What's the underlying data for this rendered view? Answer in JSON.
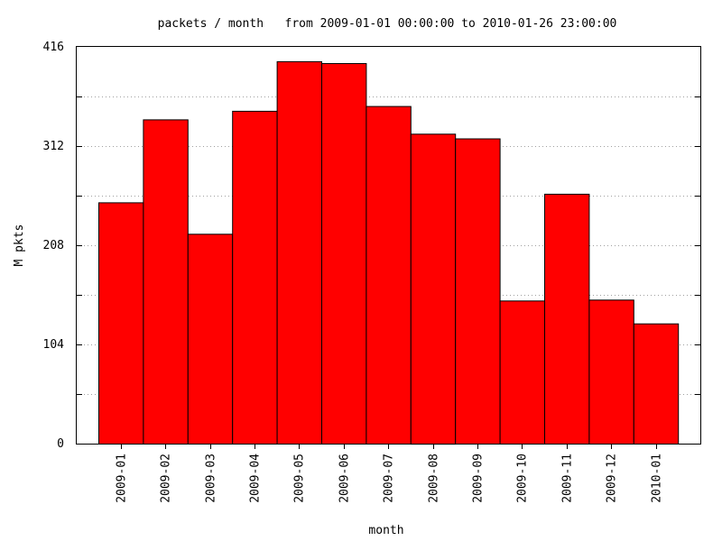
{
  "chart_data": {
    "type": "bar",
    "title": "packets / month   from 2009-01-01 00:00:00 to 2010-01-26 23:00:00",
    "xlabel": "month",
    "ylabel": "M pkts",
    "ylim": [
      0,
      416
    ],
    "yticks": [
      0,
      104,
      208,
      312,
      416
    ],
    "minor_tick_step": 52,
    "grid": true,
    "bar_color": "#ff0000",
    "categories": [
      "2009-01",
      "2009-02",
      "2009-03",
      "2009-04",
      "2009-05",
      "2009-06",
      "2009-07",
      "2009-08",
      "2009-09",
      "2009-10",
      "2009-11",
      "2009-12",
      "2010-01"
    ],
    "values": [
      253,
      340,
      220,
      349,
      401,
      399,
      354,
      325,
      320,
      150,
      262,
      151,
      126
    ]
  }
}
